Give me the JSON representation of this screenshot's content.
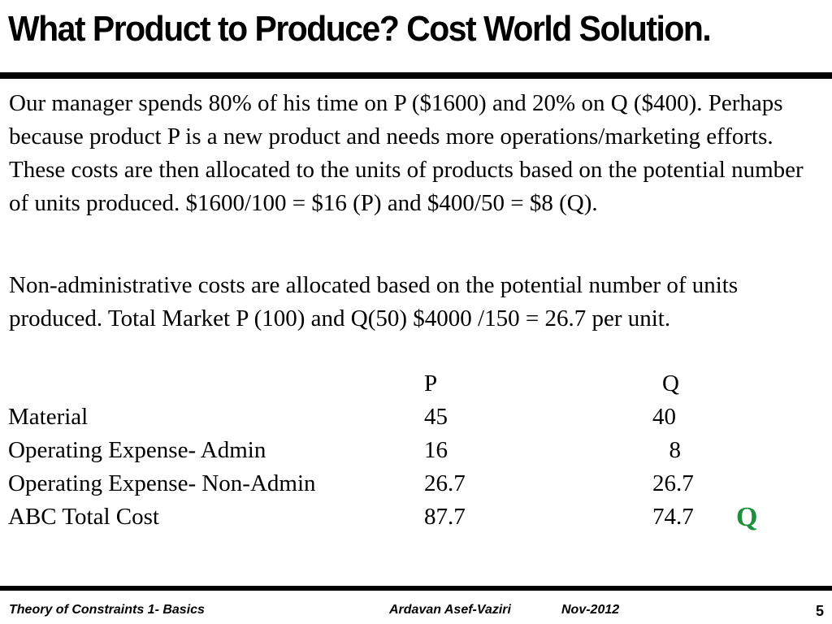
{
  "slide": {
    "title": "What Product to Produce? Cost World Solution.",
    "paragraph1": "Our manager spends 80% of his time on P ($1600) and 20% on Q ($400).  Perhaps because product P is a new product and needs more operations/marketing efforts. These costs are then allocated to the units of products based on the potential number of units produced. $1600/100 = $16 (P) and $400/50 = $8 (Q).",
    "paragraph2": "Non-administrative costs are allocated based on the potential number of units produced. Total Market P (100) and Q(50) $4000 /150 = 26.7 per unit."
  },
  "table": {
    "header": {
      "p": "P",
      "q": "Q"
    },
    "rows": [
      {
        "label": "Material",
        "p": "45",
        "q": "40"
      },
      {
        "label": "Operating Expense- Admin",
        "p": "16",
        "q": "8"
      },
      {
        "label": "Operating Expense- Non-Admin",
        "p": "26.7",
        "q": "26.7"
      },
      {
        "label": "ABC Total Cost",
        "p": "87.7",
        "q": "74.7"
      }
    ],
    "best_product": "Q",
    "best_color": "#1e8f3c"
  },
  "footer": {
    "left": "Theory of Constraints 1- Basics",
    "author": "Ardavan Asef-Vaziri",
    "date": "Nov-2012",
    "page": "5"
  }
}
